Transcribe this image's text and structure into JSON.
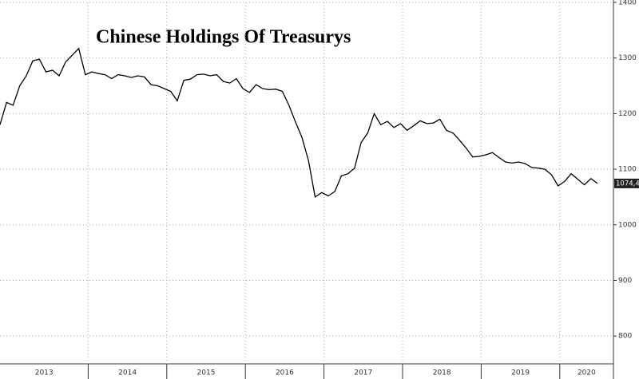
{
  "chart_data": {
    "type": "line",
    "title": "Chinese Holdings Of Treasurys",
    "x_labels": [
      "2013",
      "2014",
      "2015",
      "2016",
      "2017",
      "2018",
      "2019",
      "2020"
    ],
    "values": [
      1180,
      1220,
      1215,
      1250,
      1268,
      1295,
      1298,
      1275,
      1278,
      1268,
      1293,
      1305,
      1317,
      1270,
      1275,
      1272,
      1270,
      1263,
      1270,
      1268,
      1265,
      1268,
      1266,
      1252,
      1250,
      1245,
      1240,
      1223,
      1260,
      1262,
      1270,
      1271,
      1268,
      1270,
      1258,
      1255,
      1263,
      1245,
      1238,
      1252,
      1245,
      1243,
      1244,
      1240,
      1215,
      1185,
      1157,
      1115,
      1050,
      1058,
      1052,
      1060,
      1088,
      1092,
      1102,
      1148,
      1165,
      1200,
      1180,
      1186,
      1175,
      1182,
      1170,
      1178,
      1187,
      1182,
      1183,
      1190,
      1170,
      1165,
      1152,
      1138,
      1122,
      1123,
      1126,
      1130,
      1121,
      1113,
      1111,
      1113,
      1110,
      1103,
      1102,
      1100,
      1090,
      1070,
      1078,
      1092,
      1082,
      1072,
      1083,
      1074.4
    ],
    "value_labels": [
      null,
      null,
      null,
      null,
      null,
      null,
      null,
      null,
      null,
      null,
      null,
      null,
      null,
      null,
      null,
      null,
      null,
      null,
      null,
      null,
      null,
      null,
      null,
      null,
      null,
      null,
      null,
      null,
      null,
      null,
      null,
      null,
      null,
      null,
      null,
      null,
      null,
      null,
      null,
      null,
      null,
      null,
      null,
      null,
      null,
      null,
      null,
      null,
      null,
      null,
      null,
      null,
      null,
      null,
      null,
      null,
      null,
      null,
      null,
      null,
      null,
      null,
      null,
      null,
      null,
      null,
      null,
      null,
      null,
      null,
      null,
      null,
      null,
      null,
      null,
      null,
      null,
      null,
      null,
      null,
      null,
      null,
      null,
      null,
      null,
      null,
      null,
      null,
      null,
      null,
      null,
      "1074,4"
    ],
    "color": "#000000",
    "ylim": [
      750,
      1400
    ],
    "yticks": [
      800,
      900,
      1000,
      1100,
      1200,
      1300,
      1400
    ],
    "grid": true
  }
}
